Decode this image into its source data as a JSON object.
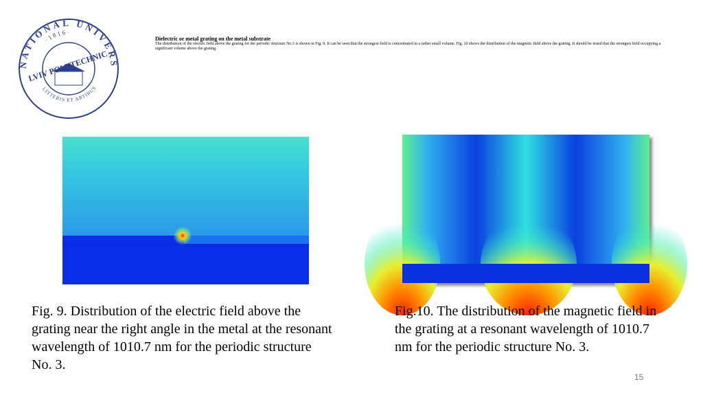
{
  "logo": {
    "top_text": "NATIONAL UNIVERSITY",
    "name": "LVIV POLYTECHNIC",
    "year": "· 1 8 1 6 ·",
    "motto": "LITTERIS ET ARTIBUS"
  },
  "header": {
    "title": "Dielectric or metal grating on the metal substrate",
    "body": "The distribution of the electric field above the grating for the periodic structure No.3 is shown in Fig. 9. It can be seen that the strongest field is concentrated in a rather small volume. Fig. 10 shows the distribution of the magnetic field above the grating. It should be noted that the strongest field occupying a significant volume above the grating."
  },
  "figures": [
    {
      "caption": "Fig. 9. Distribution of the electric field above the grating near the right angle in the metal at the resonant wavelength of 1010.7 nm for the periodic structure No. 3."
    },
    {
      "caption": "Fig.10. The distribution of the magnetic field in the grating at a resonant wavelength of 1010.7 nm for the periodic structure No. 3."
    }
  ],
  "page_number": "15"
}
